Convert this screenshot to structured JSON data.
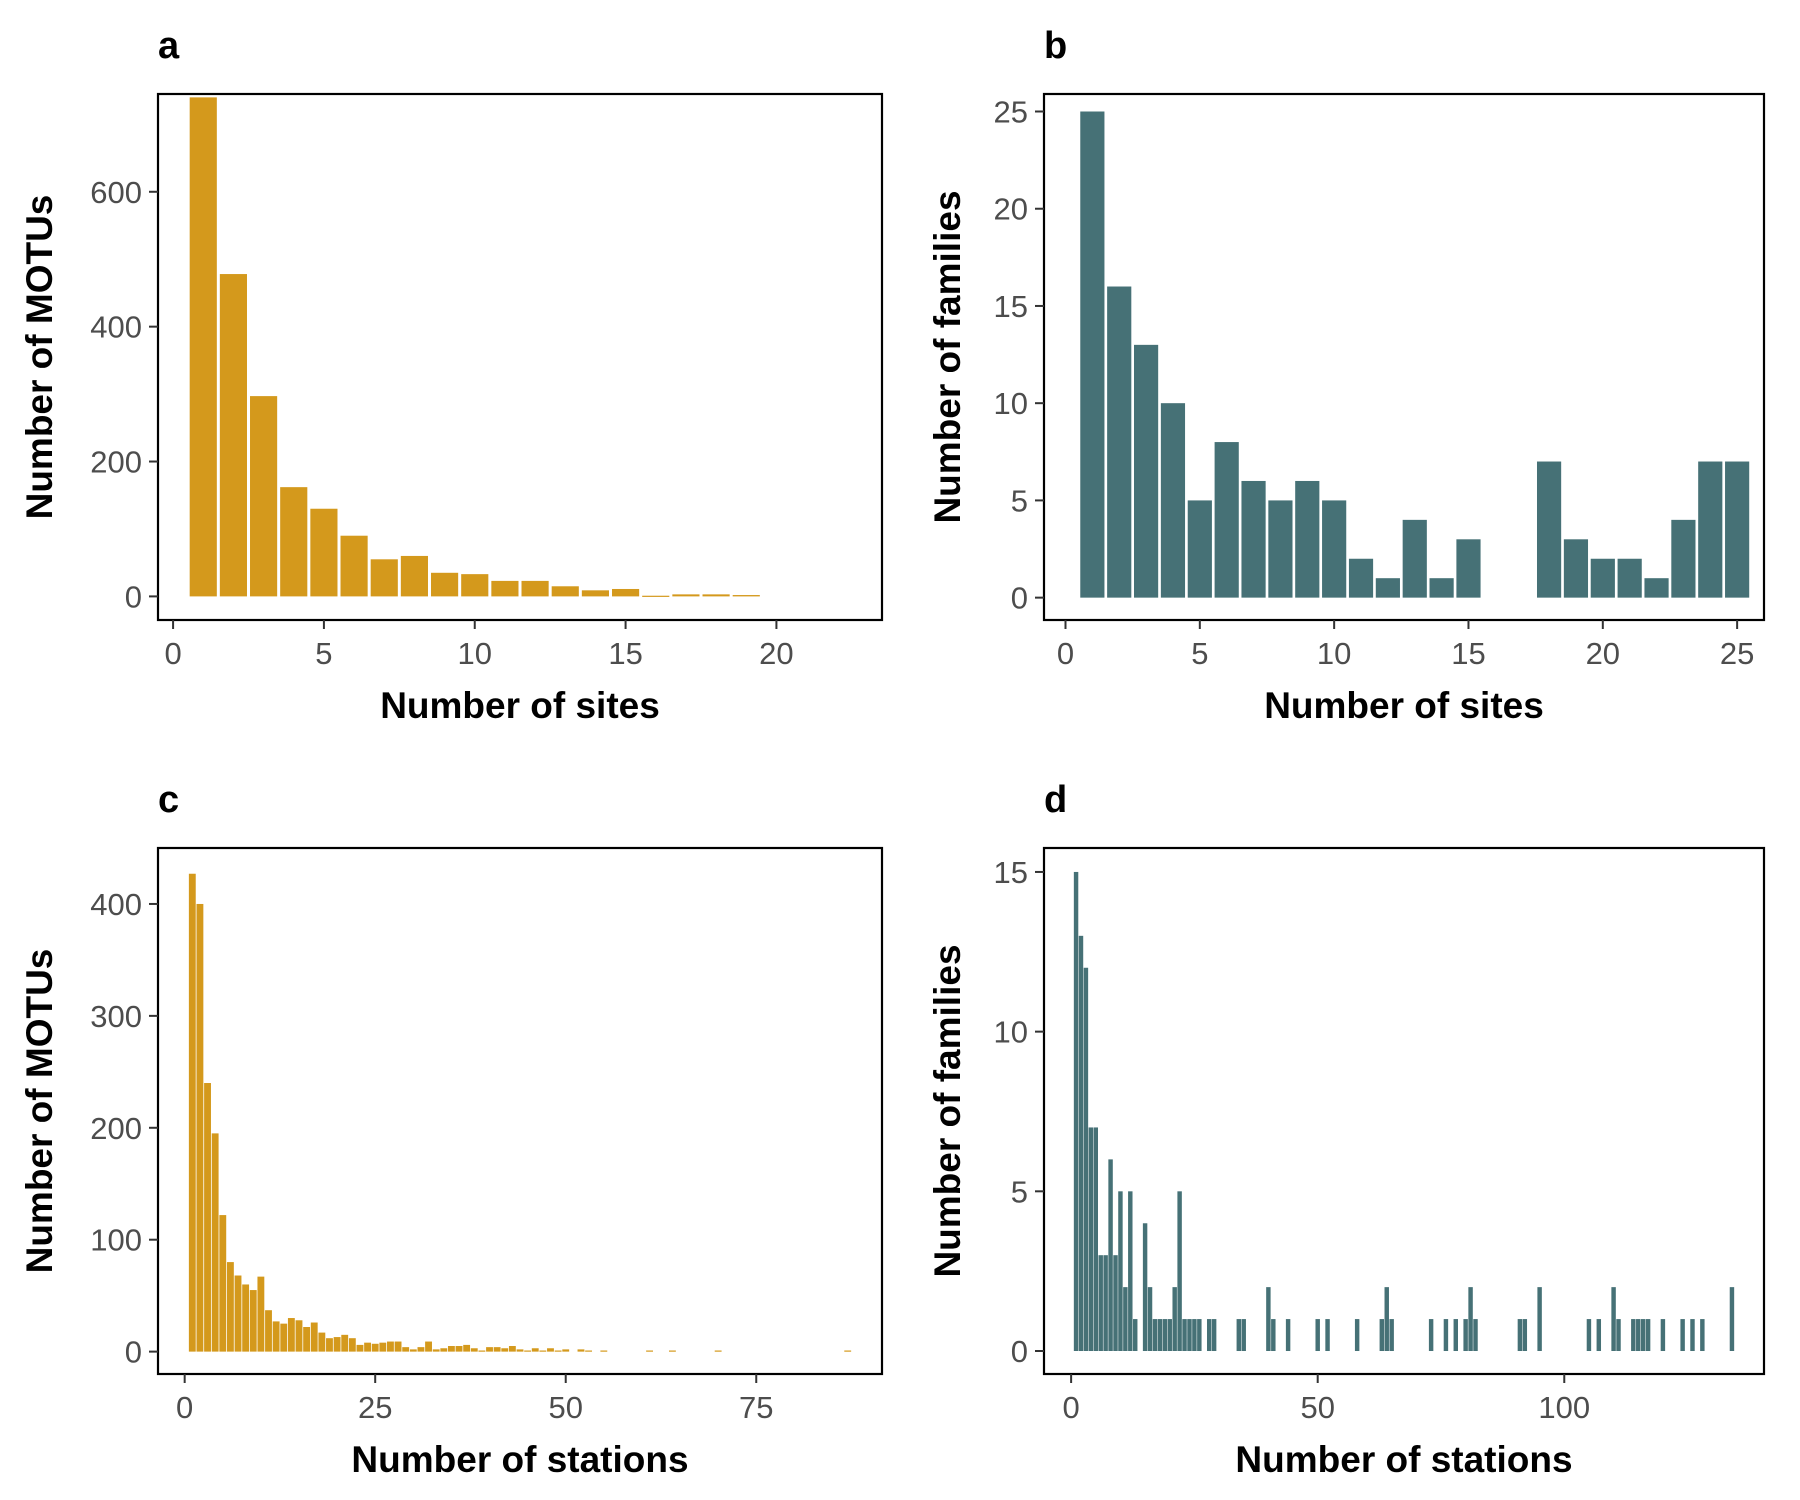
{
  "colors": {
    "gold": "#D4991C",
    "teal": "#467176"
  },
  "chart_data": [
    {
      "panel": "a",
      "type": "bar",
      "color": "#D4991C",
      "xlabel": "Number of sites",
      "ylabel": "Number of MOTUs",
      "xlim": [
        -0.5,
        23.5
      ],
      "ylim": [
        -35,
        745
      ],
      "xticks": [
        0,
        5,
        10,
        15,
        20
      ],
      "yticks": [
        0,
        200,
        400,
        600
      ],
      "bar_width": 0.9,
      "x": [
        1,
        2,
        3,
        4,
        5,
        6,
        7,
        8,
        9,
        10,
        11,
        12,
        13,
        14,
        15,
        16,
        17,
        18,
        19
      ],
      "values": [
        740,
        478,
        297,
        162,
        130,
        90,
        55,
        60,
        35,
        33,
        23,
        23,
        15,
        9,
        11,
        1,
        3,
        3,
        2
      ]
    },
    {
      "panel": "b",
      "type": "bar",
      "color": "#467176",
      "xlabel": "Number of sites",
      "ylabel": "Number of families",
      "xlim": [
        -0.8,
        26.0
      ],
      "ylim": [
        -1.15,
        25.9
      ],
      "xticks": [
        0,
        5,
        10,
        15,
        20,
        25
      ],
      "yticks": [
        0,
        5,
        10,
        15,
        20,
        25
      ],
      "bar_width": 0.9,
      "x": [
        1,
        2,
        3,
        4,
        5,
        6,
        7,
        8,
        9,
        10,
        11,
        12,
        13,
        14,
        15,
        18,
        19,
        20,
        21,
        22,
        23,
        24,
        25
      ],
      "values": [
        25,
        16,
        13,
        10,
        5,
        8,
        6,
        5,
        6,
        5,
        2,
        1,
        4,
        1,
        3,
        7,
        3,
        2,
        2,
        1,
        4,
        7,
        7
      ]
    },
    {
      "panel": "c",
      "type": "bar",
      "color": "#D4991C",
      "xlabel": "Number of stations",
      "ylabel": "Number of MOTUs",
      "xlim": [
        -3.5,
        91.5
      ],
      "ylim": [
        -20,
        450
      ],
      "xticks": [
        0,
        25,
        50,
        75
      ],
      "yticks": [
        0,
        100,
        200,
        300,
        400
      ],
      "bar_width": 0.9,
      "x": [
        1,
        2,
        3,
        4,
        5,
        6,
        7,
        8,
        9,
        10,
        11,
        12,
        13,
        14,
        15,
        16,
        17,
        18,
        19,
        20,
        21,
        22,
        23,
        24,
        25,
        26,
        27,
        28,
        29,
        30,
        31,
        32,
        33,
        34,
        35,
        36,
        37,
        38,
        39,
        40,
        41,
        42,
        43,
        44,
        45,
        46,
        47,
        48,
        49,
        50,
        52,
        53,
        55,
        61,
        64,
        70,
        87
      ],
      "values": [
        427,
        400,
        240,
        195,
        122,
        80,
        68,
        60,
        55,
        67,
        37,
        27,
        25,
        30,
        28,
        22,
        26,
        17,
        12,
        13,
        15,
        12,
        6,
        8,
        7,
        8,
        9,
        9,
        4,
        2,
        4,
        9,
        2,
        3,
        5,
        5,
        6,
        3,
        1,
        4,
        4,
        3,
        5,
        2,
        1,
        3,
        1,
        3,
        1,
        2,
        2,
        1,
        1,
        1,
        1,
        1,
        1
      ]
    },
    {
      "panel": "d",
      "type": "bar",
      "color": "#467176",
      "xlabel": "Number of stations",
      "ylabel": "Number of families",
      "xlim": [
        -5.5,
        140.5
      ],
      "ylim": [
        -0.72,
        15.75
      ],
      "xticks": [
        0,
        50,
        100
      ],
      "yticks": [
        0,
        5,
        10,
        15
      ],
      "bar_width": 0.9,
      "x": [
        1,
        2,
        3,
        4,
        5,
        6,
        7,
        8,
        9,
        10,
        11,
        12,
        13,
        15,
        16,
        17,
        18,
        19,
        20,
        21,
        22,
        23,
        24,
        25,
        26,
        28,
        29,
        34,
        35,
        40,
        41,
        44,
        50,
        52,
        58,
        63,
        64,
        65,
        73,
        76,
        78,
        80,
        81,
        82,
        91,
        92,
        95,
        105,
        107,
        110,
        111,
        114,
        115,
        116,
        117,
        120,
        124,
        126,
        128,
        134
      ],
      "values": [
        15,
        13,
        12,
        7,
        7,
        3,
        3,
        6,
        3,
        5,
        2,
        5,
        1,
        4,
        2,
        1,
        1,
        1,
        1,
        2,
        5,
        1,
        1,
        1,
        1,
        1,
        1,
        1,
        1,
        2,
        1,
        1,
        1,
        1,
        1,
        1,
        2,
        1,
        1,
        1,
        1,
        1,
        2,
        1,
        1,
        1,
        2,
        1,
        1,
        2,
        1,
        1,
        1,
        1,
        1,
        1,
        1,
        1,
        1,
        2
      ]
    }
  ]
}
